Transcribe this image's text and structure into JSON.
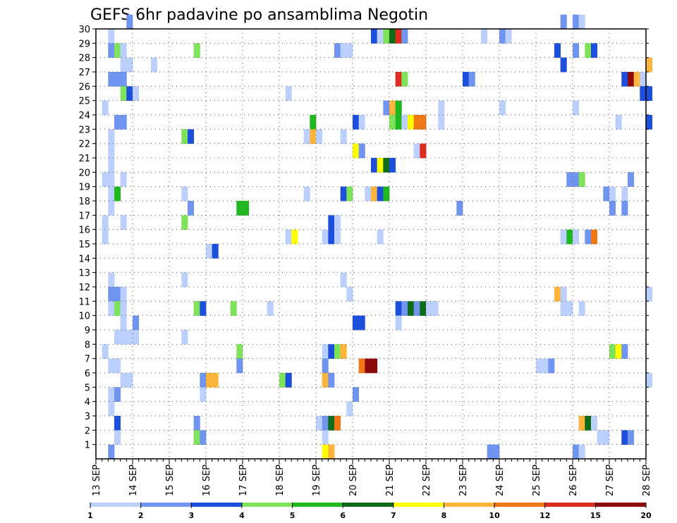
{
  "chart_data": {
    "type": "heatmap",
    "title": "GEFS 6hr padavine po ansamblima Negotin",
    "x_tick_labels": [
      "13 SEP",
      "14 SEP",
      "15 SEP",
      "16 SEP",
      "17 SEP",
      "18 SEP",
      "19 SEP",
      "20 SEP",
      "21 SEP",
      "22 SEP",
      "23 SEP",
      "24 SEP",
      "25 SEP",
      "26 SEP",
      "27 SEP",
      "28 SEP"
    ],
    "y_tick_labels": [
      "1",
      "2",
      "3",
      "4",
      "5",
      "6",
      "7",
      "8",
      "9",
      "10",
      "11",
      "12",
      "13",
      "14",
      "15",
      "16",
      "17",
      "18",
      "19",
      "20",
      "21",
      "22",
      "23",
      "24",
      "25",
      "26",
      "27",
      "28",
      "29",
      "30"
    ],
    "x_range_days": [
      0,
      15
    ],
    "y_range": [
      0,
      30
    ],
    "grid": "dotted",
    "legend": {
      "position": "bottom",
      "boundaries": [
        "1",
        "2",
        "3",
        "4",
        "5",
        "6",
        "7",
        "8",
        "10",
        "12",
        "15",
        "20"
      ],
      "colors": [
        "#bcd0ff",
        "#6f95f0",
        "#1c4fdb",
        "#7ee35a",
        "#1fb81f",
        "#0e6b17",
        "#ffff00",
        "#ffb43c",
        "#f07814",
        "#dc2d1e",
        "#8c0a0a"
      ]
    },
    "cells": [
      {
        "m": 30,
        "s": [
          [
            5,
            1
          ],
          [
            76,
            1
          ],
          [
            78,
            1
          ],
          [
            79,
            0
          ]
        ]
      },
      {
        "m": 29,
        "s": [
          [
            2,
            0
          ],
          [
            45,
            2
          ],
          [
            46,
            0
          ],
          [
            47,
            3
          ],
          [
            48,
            5
          ],
          [
            49,
            9
          ],
          [
            50,
            1
          ],
          [
            63,
            0
          ],
          [
            66,
            1
          ],
          [
            67,
            0
          ]
        ]
      },
      {
        "m": 28,
        "s": [
          [
            2,
            1
          ],
          [
            3,
            3
          ],
          [
            4,
            0
          ],
          [
            16,
            3
          ],
          [
            39,
            1
          ],
          [
            40,
            0
          ],
          [
            41,
            0
          ],
          [
            75,
            2
          ],
          [
            78,
            1
          ],
          [
            80,
            3
          ],
          [
            81,
            2
          ]
        ]
      },
      {
        "m": 27,
        "s": [
          [
            4,
            0
          ],
          [
            5,
            0
          ],
          [
            9,
            0
          ],
          [
            76,
            2
          ],
          [
            90,
            7
          ]
        ]
      },
      {
        "m": 26,
        "s": [
          [
            2,
            1
          ],
          [
            3,
            1
          ],
          [
            4,
            1
          ],
          [
            49,
            9
          ],
          [
            50,
            3
          ],
          [
            60,
            2
          ],
          [
            61,
            1
          ],
          [
            86,
            2
          ],
          [
            87,
            10
          ],
          [
            88,
            7
          ],
          [
            89,
            0
          ]
        ]
      },
      {
        "m": 25,
        "s": [
          [
            4,
            3
          ],
          [
            5,
            2
          ],
          [
            6,
            0
          ],
          [
            31,
            0
          ],
          [
            89,
            2
          ],
          [
            90,
            2
          ]
        ]
      },
      {
        "m": 24,
        "s": [
          [
            1,
            0
          ],
          [
            47,
            1
          ],
          [
            48,
            7
          ],
          [
            49,
            4
          ],
          [
            56,
            0
          ],
          [
            66,
            0
          ],
          [
            78,
            0
          ]
        ]
      },
      {
        "m": 23,
        "s": [
          [
            3,
            1
          ],
          [
            4,
            1
          ],
          [
            35,
            4
          ],
          [
            42,
            2
          ],
          [
            43,
            0
          ],
          [
            48,
            3
          ],
          [
            49,
            4
          ],
          [
            50,
            0
          ],
          [
            51,
            6
          ],
          [
            52,
            8
          ],
          [
            53,
            8
          ],
          [
            56,
            0
          ],
          [
            85,
            0
          ],
          [
            90,
            2
          ]
        ]
      },
      {
        "m": 22,
        "s": [
          [
            2,
            0
          ],
          [
            14,
            3
          ],
          [
            15,
            2
          ],
          [
            34,
            0
          ],
          [
            35,
            7
          ],
          [
            36,
            0
          ],
          [
            40,
            0
          ]
        ]
      },
      {
        "m": 21,
        "s": [
          [
            2,
            0
          ],
          [
            42,
            6
          ],
          [
            43,
            1
          ],
          [
            52,
            0
          ],
          [
            53,
            9
          ]
        ]
      },
      {
        "m": 20,
        "s": [
          [
            2,
            0
          ],
          [
            45,
            2
          ],
          [
            46,
            6
          ],
          [
            47,
            5
          ],
          [
            48,
            2
          ]
        ]
      },
      {
        "m": 19,
        "s": [
          [
            1,
            0
          ],
          [
            2,
            0
          ],
          [
            4,
            0
          ],
          [
            77,
            1
          ],
          [
            78,
            1
          ],
          [
            79,
            3
          ],
          [
            87,
            1
          ]
        ]
      },
      {
        "m": 18,
        "s": [
          [
            2,
            0
          ],
          [
            3,
            4
          ],
          [
            14,
            0
          ],
          [
            34,
            0
          ],
          [
            40,
            2
          ],
          [
            41,
            3
          ],
          [
            44,
            0
          ],
          [
            45,
            7
          ],
          [
            46,
            2
          ],
          [
            47,
            4
          ],
          [
            83,
            1
          ],
          [
            84,
            0
          ],
          [
            86,
            0
          ]
        ]
      },
      {
        "m": 17,
        "s": [
          [
            2,
            0
          ],
          [
            15,
            1
          ],
          [
            23,
            4
          ],
          [
            24,
            4
          ],
          [
            59,
            1
          ],
          [
            84,
            1
          ],
          [
            86,
            1
          ]
        ]
      },
      {
        "m": 16,
        "s": [
          [
            1,
            0
          ],
          [
            4,
            0
          ],
          [
            14,
            3
          ],
          [
            38,
            2
          ],
          [
            39,
            0
          ]
        ]
      },
      {
        "m": 15,
        "s": [
          [
            1,
            0
          ],
          [
            31,
            0
          ],
          [
            32,
            6
          ],
          [
            37,
            0
          ],
          [
            38,
            2
          ],
          [
            39,
            0
          ],
          [
            46,
            0
          ],
          [
            76,
            0
          ],
          [
            77,
            4
          ],
          [
            78,
            0
          ],
          [
            80,
            1
          ],
          [
            81,
            8
          ]
        ]
      },
      {
        "m": 14,
        "s": [
          [
            18,
            0
          ],
          [
            19,
            2
          ]
        ]
      },
      {
        "m": 12,
        "s": [
          [
            2,
            0
          ],
          [
            14,
            0
          ],
          [
            40,
            0
          ]
        ]
      },
      {
        "m": 11,
        "s": [
          [
            2,
            1
          ],
          [
            3,
            1
          ],
          [
            4,
            0
          ],
          [
            41,
            0
          ],
          [
            75,
            7
          ],
          [
            76,
            0
          ],
          [
            90,
            0
          ]
        ]
      },
      {
        "m": 10,
        "s": [
          [
            2,
            0
          ],
          [
            3,
            3
          ],
          [
            4,
            0
          ],
          [
            16,
            3
          ],
          [
            17,
            2
          ],
          [
            22,
            3
          ],
          [
            28,
            0
          ],
          [
            49,
            2
          ],
          [
            50,
            1
          ],
          [
            51,
            5
          ],
          [
            52,
            1
          ],
          [
            53,
            5
          ],
          [
            54,
            0
          ],
          [
            55,
            0
          ],
          [
            76,
            0
          ],
          [
            77,
            0
          ],
          [
            79,
            0
          ]
        ]
      },
      {
        "m": 9,
        "s": [
          [
            4,
            0
          ],
          [
            6,
            1
          ],
          [
            42,
            2
          ],
          [
            43,
            2
          ],
          [
            49,
            0
          ]
        ]
      },
      {
        "m": 8,
        "s": [
          [
            3,
            0
          ],
          [
            4,
            0
          ],
          [
            5,
            0
          ],
          [
            6,
            0
          ],
          [
            14,
            0
          ]
        ]
      },
      {
        "m": 7,
        "s": [
          [
            1,
            0
          ],
          [
            23,
            3
          ],
          [
            37,
            0
          ],
          [
            38,
            2
          ],
          [
            39,
            3
          ],
          [
            40,
            7
          ],
          [
            84,
            3
          ],
          [
            85,
            6
          ],
          [
            86,
            1
          ]
        ]
      },
      {
        "m": 6,
        "s": [
          [
            2,
            0
          ],
          [
            3,
            0
          ],
          [
            23,
            1
          ],
          [
            37,
            1
          ],
          [
            43,
            8
          ],
          [
            44,
            10
          ],
          [
            45,
            10
          ],
          [
            72,
            0
          ],
          [
            73,
            0
          ],
          [
            74,
            1
          ]
        ]
      },
      {
        "m": 5,
        "s": [
          [
            4,
            0
          ],
          [
            5,
            0
          ],
          [
            17,
            1
          ],
          [
            18,
            7
          ],
          [
            19,
            7
          ],
          [
            30,
            3
          ],
          [
            31,
            2
          ],
          [
            37,
            7
          ],
          [
            38,
            1
          ],
          [
            90,
            0
          ]
        ]
      },
      {
        "m": 4,
        "s": [
          [
            2,
            0
          ],
          [
            3,
            1
          ],
          [
            17,
            0
          ],
          [
            42,
            1
          ]
        ]
      },
      {
        "m": 3,
        "s": [
          [
            2,
            0
          ],
          [
            41,
            0
          ]
        ]
      },
      {
        "m": 2,
        "s": [
          [
            3,
            2
          ],
          [
            16,
            1
          ],
          [
            36,
            0
          ],
          [
            37,
            1
          ],
          [
            38,
            5
          ],
          [
            39,
            8
          ],
          [
            79,
            7
          ],
          [
            80,
            5
          ],
          [
            81,
            0
          ]
        ]
      },
      {
        "m": 1,
        "s": [
          [
            3,
            0
          ],
          [
            16,
            3
          ],
          [
            17,
            1
          ],
          [
            37,
            0
          ],
          [
            82,
            0
          ],
          [
            83,
            0
          ],
          [
            86,
            2
          ],
          [
            87,
            1
          ]
        ]
      },
      {
        "m": 0,
        "s": [
          [
            2,
            1
          ],
          [
            37,
            6
          ],
          [
            38,
            7
          ],
          [
            64,
            1
          ],
          [
            65,
            1
          ],
          [
            78,
            1
          ],
          [
            79,
            0
          ]
        ]
      }
    ]
  }
}
